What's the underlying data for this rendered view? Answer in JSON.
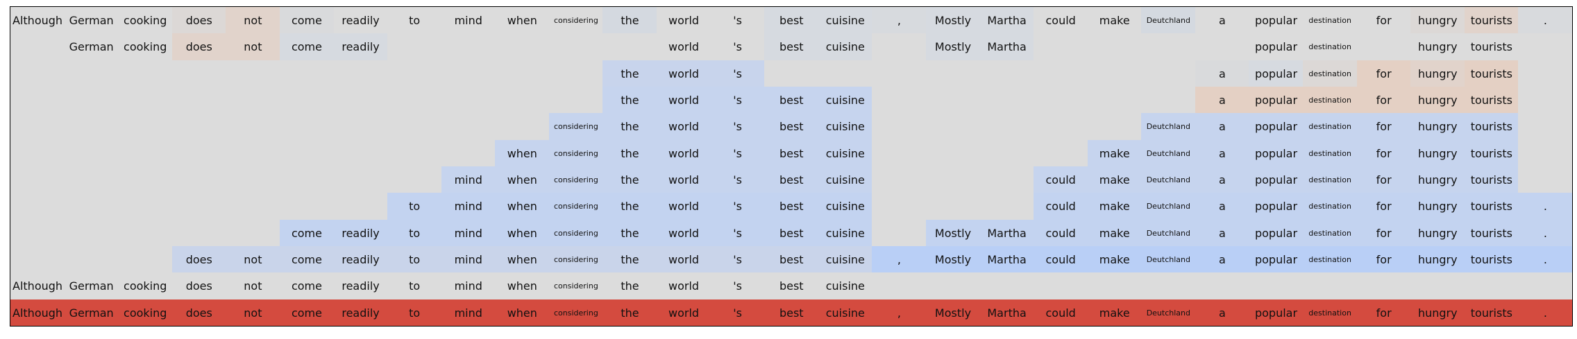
{
  "chart_data": {
    "type": "heatmap",
    "columns": [
      "Although",
      "German",
      "cooking",
      "does",
      "not",
      "come",
      "readily",
      "to",
      "mind",
      "when",
      "considering",
      "the",
      "world",
      "'s",
      "best",
      "cuisine",
      ",",
      "Mostly",
      "Martha",
      "could",
      "make",
      "Deutchland",
      "a",
      "popular",
      "destination",
      "for",
      "hungry",
      "tourists",
      "."
    ],
    "rows": [
      {
        "tokens": [
          1,
          1,
          1,
          1,
          1,
          1,
          1,
          1,
          1,
          1,
          1,
          1,
          1,
          1,
          1,
          1,
          1,
          1,
          1,
          1,
          1,
          1,
          1,
          1,
          1,
          1,
          1,
          1,
          1
        ],
        "colors": [
          "#dcdcdc",
          "#dcdcdc",
          "#dcdcdc",
          "#dcd8d6",
          "#e1d3cb",
          "#d9dadc",
          "#dcdcdc",
          "#dcdcdc",
          "#dcdcdc",
          "#dcdcdc",
          "#dcdcdc",
          "#d4d9e0",
          "#dcdcdc",
          "#dcdcdc",
          "#d6dae0",
          "#d6dae0",
          "#d7dade",
          "#d6dae0",
          "#d6dae0",
          "#dcdcdc",
          "#dcdcdc",
          "#d4d9e0",
          "#dcdcdc",
          "#dcdcdc",
          "#dcdcdc",
          "#dcdcdc",
          "#dcd8d6",
          "#e1d3cb",
          "#d8dadd"
        ]
      },
      {
        "tokens": [
          0,
          1,
          1,
          1,
          1,
          1,
          1,
          0,
          0,
          0,
          0,
          0,
          1,
          1,
          1,
          1,
          0,
          1,
          1,
          0,
          0,
          0,
          0,
          1,
          1,
          0,
          1,
          1,
          0
        ],
        "colors": [
          "#dcdcdc",
          "#dcdcdc",
          "#dcdcdc",
          "#e1d3cb",
          "#e1d3cb",
          "#d6dae0",
          "#d6dae0",
          "#dcdcdc",
          "#dcdcdc",
          "#dcdcdc",
          "#dcdcdc",
          "#dcdcdc",
          "#dcdcdc",
          "#dcdcdc",
          "#d6dae0",
          "#d6dae0",
          "#dcdcdc",
          "#d6dae0",
          "#d6dae0",
          "#dcdcdc",
          "#dcdcdc",
          "#dcdcdc",
          "#dcdcdc",
          "#dcdcdc",
          "#dcdcdc",
          "#dcdcdc",
          "#dcdcdc",
          "#dcdcdc",
          "#dcdcdc"
        ]
      },
      {
        "tokens": [
          0,
          0,
          0,
          0,
          0,
          0,
          0,
          0,
          0,
          0,
          0,
          1,
          1,
          1,
          0,
          0,
          0,
          0,
          0,
          0,
          0,
          0,
          1,
          1,
          1,
          1,
          1,
          1,
          0
        ],
        "colors": [
          "#dcdcdc",
          "#dcdcdc",
          "#dcdcdc",
          "#dcdcdc",
          "#dcdcdc",
          "#dcdcdc",
          "#dcdcdc",
          "#dcdcdc",
          "#dcdcdc",
          "#dcdcdc",
          "#dcdcdc",
          "#c8d4ec",
          "#c8d4ec",
          "#c8d4ec",
          "#dcdcdc",
          "#dcdcdc",
          "#dcdcdc",
          "#dcdcdc",
          "#dcdcdc",
          "#dcdcdc",
          "#dcdcdc",
          "#dcdcdc",
          "#d9dadc",
          "#d6dae0",
          "#dcd8d6",
          "#e4d0c4",
          "#e1d3cb",
          "#e4d0c4",
          "#dcdcdc"
        ]
      },
      {
        "tokens": [
          0,
          0,
          0,
          0,
          0,
          0,
          0,
          0,
          0,
          0,
          0,
          1,
          1,
          1,
          1,
          1,
          0,
          0,
          0,
          0,
          0,
          0,
          1,
          1,
          1,
          1,
          1,
          1,
          0
        ],
        "colors": [
          "#dcdcdc",
          "#dcdcdc",
          "#dcdcdc",
          "#dcdcdc",
          "#dcdcdc",
          "#dcdcdc",
          "#dcdcdc",
          "#dcdcdc",
          "#dcdcdc",
          "#dcdcdc",
          "#dcdcdc",
          "#c6d4ee",
          "#c6d4ee",
          "#c6d4ee",
          "#c6d4ee",
          "#c6d4ee",
          "#dcdcdc",
          "#dcdcdc",
          "#dcdcdc",
          "#dcdcdc",
          "#dcdcdc",
          "#dcdcdc",
          "#e4d0c4",
          "#e4d0c4",
          "#e4d0c4",
          "#e4d0c4",
          "#e4d0c4",
          "#e4d0c4",
          "#dcdcdc"
        ]
      },
      {
        "tokens": [
          0,
          0,
          0,
          0,
          0,
          0,
          0,
          0,
          0,
          0,
          1,
          1,
          1,
          1,
          1,
          1,
          0,
          0,
          0,
          0,
          0,
          1,
          1,
          1,
          1,
          1,
          1,
          1,
          0
        ],
        "colors": [
          "#dcdcdc",
          "#dcdcdc",
          "#dcdcdc",
          "#dcdcdc",
          "#dcdcdc",
          "#dcdcdc",
          "#dcdcdc",
          "#dcdcdc",
          "#dcdcdc",
          "#dcdcdc",
          "#c6d4ee",
          "#c6d4ee",
          "#c6d4ee",
          "#c6d4ee",
          "#c6d4ee",
          "#c6d4ee",
          "#dcdcdc",
          "#dcdcdc",
          "#dcdcdc",
          "#dcdcdc",
          "#dcdcdc",
          "#c6d4ee",
          "#c6d4ee",
          "#c6d4ee",
          "#c6d4ee",
          "#c6d4ee",
          "#c6d4ee",
          "#c6d4ee",
          "#dcdcdc"
        ]
      },
      {
        "tokens": [
          0,
          0,
          0,
          0,
          0,
          0,
          0,
          0,
          0,
          1,
          1,
          1,
          1,
          1,
          1,
          1,
          0,
          0,
          0,
          0,
          1,
          1,
          1,
          1,
          1,
          1,
          1,
          1,
          0
        ],
        "colors": [
          "#dcdcdc",
          "#dcdcdc",
          "#dcdcdc",
          "#dcdcdc",
          "#dcdcdc",
          "#dcdcdc",
          "#dcdcdc",
          "#dcdcdc",
          "#dcdcdc",
          "#c6d4ee",
          "#c6d4ee",
          "#c6d4ee",
          "#c6d4ee",
          "#c6d4ee",
          "#c6d4ee",
          "#c6d4ee",
          "#dcdcdc",
          "#dcdcdc",
          "#dcdcdc",
          "#dcdcdc",
          "#c6d4ee",
          "#c6d4ee",
          "#c6d4ee",
          "#c6d4ee",
          "#c6d4ee",
          "#c6d4ee",
          "#c6d4ee",
          "#c6d4ee",
          "#dcdcdc"
        ]
      },
      {
        "tokens": [
          0,
          0,
          0,
          0,
          0,
          0,
          0,
          0,
          1,
          1,
          1,
          1,
          1,
          1,
          1,
          1,
          0,
          0,
          0,
          1,
          1,
          1,
          1,
          1,
          1,
          1,
          1,
          1,
          0
        ],
        "colors": [
          "#dcdcdc",
          "#dcdcdc",
          "#dcdcdc",
          "#dcdcdc",
          "#dcdcdc",
          "#dcdcdc",
          "#dcdcdc",
          "#dcdcdc",
          "#c6d4ee",
          "#c6d4ee",
          "#c6d4ee",
          "#c6d4ee",
          "#c6d4ee",
          "#c6d4ee",
          "#c6d4ee",
          "#c6d4ee",
          "#dcdcdc",
          "#dcdcdc",
          "#dcdcdc",
          "#c6d4ee",
          "#c6d4ee",
          "#c6d4ee",
          "#c6d4ee",
          "#c6d4ee",
          "#c6d4ee",
          "#c6d4ee",
          "#c6d4ee",
          "#c6d4ee",
          "#dcdcdc"
        ]
      },
      {
        "tokens": [
          0,
          0,
          0,
          0,
          0,
          0,
          0,
          1,
          1,
          1,
          1,
          1,
          1,
          1,
          1,
          1,
          0,
          0,
          0,
          1,
          1,
          1,
          1,
          1,
          1,
          1,
          1,
          1,
          1
        ],
        "colors": [
          "#dcdcdc",
          "#dcdcdc",
          "#dcdcdc",
          "#dcdcdc",
          "#dcdcdc",
          "#dcdcdc",
          "#dcdcdc",
          "#c3d3f0",
          "#c3d3f0",
          "#c3d3f0",
          "#c3d3f0",
          "#c3d3f0",
          "#c3d3f0",
          "#c3d3f0",
          "#c3d3f0",
          "#c3d3f0",
          "#dcdcdc",
          "#dcdcdc",
          "#dcdcdc",
          "#c3d3f0",
          "#c3d3f0",
          "#c3d3f0",
          "#c3d3f0",
          "#c3d3f0",
          "#c3d3f0",
          "#c3d3f0",
          "#c3d3f0",
          "#c3d3f0",
          "#c3d3f0"
        ]
      },
      {
        "tokens": [
          0,
          0,
          0,
          0,
          0,
          1,
          1,
          1,
          1,
          1,
          1,
          1,
          1,
          1,
          1,
          1,
          0,
          1,
          1,
          1,
          1,
          1,
          1,
          1,
          1,
          1,
          1,
          1,
          1
        ],
        "colors": [
          "#dcdcdc",
          "#dcdcdc",
          "#dcdcdc",
          "#dcdcdc",
          "#dcdcdc",
          "#c3d3f0",
          "#c3d3f0",
          "#c3d3f0",
          "#c3d3f0",
          "#c3d3f0",
          "#c3d3f0",
          "#c3d3f0",
          "#c3d3f0",
          "#c3d3f0",
          "#c3d3f0",
          "#c3d3f0",
          "#dcdcdc",
          "#c3d3f0",
          "#c3d3f0",
          "#c3d3f0",
          "#c3d3f0",
          "#c3d3f0",
          "#c3d3f0",
          "#c3d3f0",
          "#c3d3f0",
          "#c3d3f0",
          "#c3d3f0",
          "#c3d3f0",
          "#c3d3f0"
        ]
      },
      {
        "tokens": [
          0,
          0,
          0,
          1,
          1,
          1,
          1,
          1,
          1,
          1,
          1,
          1,
          1,
          1,
          1,
          1,
          1,
          1,
          1,
          1,
          1,
          1,
          1,
          1,
          1,
          1,
          1,
          1,
          1
        ],
        "colors": [
          "#dcdcdc",
          "#dcdcdc",
          "#dcdcdc",
          "#c9d4ea",
          "#c9d4ea",
          "#c9d4ea",
          "#c9d4ea",
          "#c9d4ea",
          "#c9d4ea",
          "#c9d4ea",
          "#c9d4ea",
          "#c9d4ea",
          "#c9d4ea",
          "#c9d4ea",
          "#c9d4ea",
          "#c9d4ea",
          "#b9cff6",
          "#b9cff6",
          "#b9cff6",
          "#b9cff6",
          "#b9cff6",
          "#b9cff6",
          "#b9cff6",
          "#b9cff6",
          "#b9cff6",
          "#b9cff6",
          "#b9cff6",
          "#b9cff6",
          "#b9cff6"
        ]
      },
      {
        "tokens": [
          1,
          1,
          1,
          1,
          1,
          1,
          1,
          1,
          1,
          1,
          1,
          1,
          1,
          1,
          1,
          1,
          0,
          0,
          0,
          0,
          0,
          0,
          0,
          0,
          0,
          0,
          0,
          0,
          0
        ],
        "colors": [
          "#dcdcdc",
          "#dcdcdc",
          "#dcdcdc",
          "#dcdcdc",
          "#dcdcdc",
          "#dcdcdc",
          "#dcdcdc",
          "#dcdcdc",
          "#dcdcdc",
          "#dcdcdc",
          "#dcdcdc",
          "#dcdcdc",
          "#dcdcdc",
          "#dcdcdc",
          "#dcdcdc",
          "#dcdcdc",
          "#dcdcdc",
          "#dcdcdc",
          "#dcdcdc",
          "#dcdcdc",
          "#dcdcdc",
          "#dcdcdc",
          "#dcdcdc",
          "#dcdcdc",
          "#dcdcdc",
          "#dcdcdc",
          "#dcdcdc",
          "#dcdcdc",
          "#dcdcdc"
        ]
      },
      {
        "tokens": [
          1,
          1,
          1,
          1,
          1,
          1,
          1,
          1,
          1,
          1,
          1,
          1,
          1,
          1,
          1,
          1,
          1,
          1,
          1,
          1,
          1,
          1,
          1,
          1,
          1,
          1,
          1,
          1,
          1
        ],
        "colors": [
          "#d44b3f",
          "#d44b3f",
          "#d44b3f",
          "#d44b3f",
          "#d44b3f",
          "#d44b3f",
          "#d44b3f",
          "#d44b3f",
          "#d44b3f",
          "#d44b3f",
          "#d44b3f",
          "#d44b3f",
          "#d44b3f",
          "#d44b3f",
          "#d44b3f",
          "#d44b3f",
          "#d44b3f",
          "#d44b3f",
          "#d44b3f",
          "#d44b3f",
          "#d44b3f",
          "#d44b3f",
          "#d44b3f",
          "#d44b3f",
          "#d44b3f",
          "#d44b3f",
          "#d44b3f",
          "#d44b3f",
          "#d44b3f"
        ]
      }
    ],
    "small_font_tokens": [
      "considering",
      "Deutchland",
      "destination"
    ]
  }
}
